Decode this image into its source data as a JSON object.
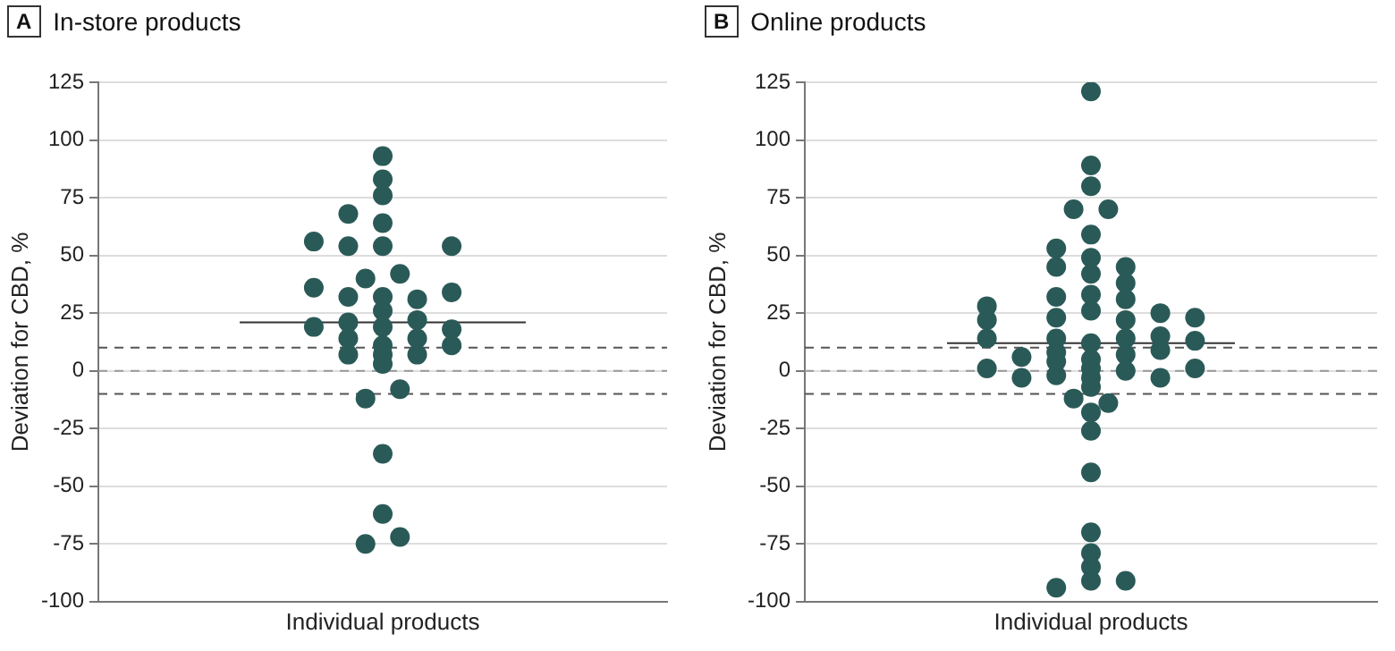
{
  "chart_data": [
    {
      "type": "scatter",
      "title": "In-store products",
      "annotations": [
        "A"
      ],
      "xlabel": "Individual products",
      "ylabel": "Deviation for CBD, %",
      "categories": [
        null,
        null,
        null,
        null,
        null,
        null,
        null,
        null,
        null,
        null,
        null,
        null,
        null,
        null,
        null,
        null,
        null,
        null,
        null,
        null,
        null,
        null,
        null,
        null,
        null,
        null,
        null,
        null,
        null,
        null,
        null,
        null,
        null
      ],
      "series": [
        {
          "color": "#2a5a57",
          "values": [
            null,
            null,
            null,
            null,
            null,
            null,
            null,
            null,
            null,
            null,
            null,
            null,
            56,
            null,
            68,
            40,
            93,
            42,
            31,
            null,
            54,
            null,
            null,
            null,
            null,
            null,
            null,
            null,
            null,
            null,
            null,
            null,
            null
          ]
        },
        {
          "color": "#2a5a57",
          "values": [
            null,
            null,
            null,
            null,
            null,
            null,
            null,
            null,
            null,
            null,
            null,
            null,
            36,
            null,
            54,
            -12,
            83,
            -8,
            22,
            null,
            34,
            null,
            null,
            null,
            null,
            null,
            null,
            null,
            null,
            null,
            null,
            null,
            null
          ]
        },
        {
          "color": "#2a5a57",
          "values": [
            null,
            null,
            null,
            null,
            null,
            null,
            null,
            null,
            null,
            null,
            null,
            null,
            19,
            null,
            32,
            -75,
            76,
            -72,
            14,
            null,
            18,
            null,
            null,
            null,
            null,
            null,
            null,
            null,
            null,
            null,
            null,
            null,
            null
          ]
        },
        {
          "color": "#2a5a57",
          "values": [
            null,
            null,
            null,
            null,
            null,
            null,
            null,
            null,
            null,
            null,
            null,
            null,
            null,
            null,
            21,
            null,
            64,
            null,
            7,
            null,
            11,
            null,
            null,
            null,
            null,
            null,
            null,
            null,
            null,
            null,
            null,
            null,
            null
          ]
        },
        {
          "color": "#2a5a57",
          "values": [
            null,
            null,
            null,
            null,
            null,
            null,
            null,
            null,
            null,
            null,
            null,
            null,
            null,
            null,
            14,
            null,
            54,
            null,
            null,
            null,
            null,
            null,
            null,
            null,
            null,
            null,
            null,
            null,
            null,
            null,
            null,
            null,
            null
          ]
        },
        {
          "color": "#2a5a57",
          "values": [
            null,
            null,
            null,
            null,
            null,
            null,
            null,
            null,
            null,
            null,
            null,
            null,
            null,
            null,
            7,
            null,
            32,
            null,
            null,
            null,
            null,
            null,
            null,
            null,
            null,
            null,
            null,
            null,
            null,
            null,
            null,
            null,
            null
          ]
        },
        {
          "color": "#2a5a57",
          "values": [
            null,
            null,
            null,
            null,
            null,
            null,
            null,
            null,
            null,
            null,
            null,
            null,
            null,
            null,
            null,
            null,
            26,
            null,
            null,
            null,
            null,
            null,
            null,
            null,
            null,
            null,
            null,
            null,
            null,
            null,
            null,
            null,
            null
          ]
        },
        {
          "color": "#2a5a57",
          "values": [
            null,
            null,
            null,
            null,
            null,
            null,
            null,
            null,
            null,
            null,
            null,
            null,
            null,
            null,
            null,
            null,
            19,
            null,
            null,
            null,
            null,
            null,
            null,
            null,
            null,
            null,
            null,
            null,
            null,
            null,
            null,
            null,
            null
          ]
        },
        {
          "color": "#2a5a57",
          "values": [
            null,
            null,
            null,
            null,
            null,
            null,
            null,
            null,
            null,
            null,
            null,
            null,
            null,
            null,
            null,
            null,
            11,
            null,
            null,
            null,
            null,
            null,
            null,
            null,
            null,
            null,
            null,
            null,
            null,
            null,
            null,
            null,
            null
          ]
        },
        {
          "color": "#2a5a57",
          "values": [
            null,
            null,
            null,
            null,
            null,
            null,
            null,
            null,
            null,
            null,
            null,
            null,
            null,
            null,
            null,
            null,
            7,
            null,
            null,
            null,
            null,
            null,
            null,
            null,
            null,
            null,
            null,
            null,
            null,
            null,
            null,
            null,
            null
          ]
        },
        {
          "color": "#2a5a57",
          "values": [
            null,
            null,
            null,
            null,
            null,
            null,
            null,
            null,
            null,
            null,
            null,
            null,
            null,
            null,
            null,
            null,
            3,
            null,
            null,
            null,
            null,
            null,
            null,
            null,
            null,
            null,
            null,
            null,
            null,
            null,
            null,
            null,
            null
          ]
        },
        {
          "color": "#2a5a57",
          "values": [
            null,
            null,
            null,
            null,
            null,
            null,
            null,
            null,
            null,
            null,
            null,
            null,
            null,
            null,
            null,
            null,
            -36,
            null,
            null,
            null,
            null,
            null,
            null,
            null,
            null,
            null,
            null,
            null,
            null,
            null,
            null,
            null,
            null
          ]
        },
        {
          "color": "#2a5a57",
          "values": [
            null,
            null,
            null,
            null,
            null,
            null,
            null,
            null,
            null,
            null,
            null,
            null,
            null,
            null,
            null,
            null,
            -62,
            null,
            null,
            null,
            null,
            null,
            null,
            null,
            null,
            null,
            null,
            null,
            null,
            null,
            null,
            null,
            null
          ]
        }
      ],
      "ylim": [
        -100,
        125
      ],
      "yticks": [
        -100,
        -75,
        -50,
        -25,
        0,
        25,
        50,
        75,
        100,
        125
      ],
      "grid": "y",
      "marker": "circle",
      "ref_lines": [
        {
          "axis": "y",
          "value": 21,
          "color": "#333333",
          "line_style": "solid"
        },
        {
          "axis": "y",
          "value": 10,
          "color": "#555555",
          "line_style": "dashed"
        },
        {
          "axis": "y",
          "value": 0,
          "color": "#999999",
          "line_style": "dashed"
        },
        {
          "axis": "y",
          "value": -10,
          "color": "#555555",
          "line_style": "dashed"
        }
      ]
    },
    {
      "type": "scatter",
      "title": "Online products",
      "annotations": [
        "B"
      ],
      "xlabel": "Individual products",
      "ylabel": "Deviation for CBD, %",
      "categories": [
        null,
        null,
        null,
        null,
        null,
        null,
        null,
        null,
        null,
        null,
        null,
        null,
        null,
        null,
        null,
        null,
        null,
        null,
        null,
        null,
        null,
        null,
        null,
        null,
        null,
        null,
        null,
        null,
        null,
        null,
        null,
        null,
        null
      ],
      "series": [
        {
          "color": "#2a5a57",
          "values": [
            null,
            null,
            null,
            null,
            null,
            null,
            null,
            null,
            null,
            null,
            28,
            null,
            6,
            null,
            53,
            70,
            121,
            70,
            45,
            null,
            25,
            null,
            23,
            null,
            null,
            null,
            null,
            null,
            null,
            null,
            null,
            null,
            null
          ]
        },
        {
          "color": "#2a5a57",
          "values": [
            null,
            null,
            null,
            null,
            null,
            null,
            null,
            null,
            null,
            null,
            22,
            null,
            -3,
            null,
            45,
            -12,
            89,
            -14,
            38,
            null,
            15,
            null,
            13,
            null,
            null,
            null,
            null,
            null,
            null,
            null,
            null,
            null,
            null
          ]
        },
        {
          "color": "#2a5a57",
          "values": [
            null,
            null,
            null,
            null,
            null,
            null,
            null,
            null,
            null,
            null,
            14,
            null,
            null,
            null,
            32,
            null,
            80,
            null,
            31,
            null,
            9,
            null,
            1,
            null,
            null,
            null,
            null,
            null,
            null,
            null,
            null,
            null,
            null
          ]
        },
        {
          "color": "#2a5a57",
          "values": [
            null,
            null,
            null,
            null,
            null,
            null,
            null,
            null,
            null,
            null,
            1,
            null,
            null,
            null,
            23,
            null,
            59,
            null,
            22,
            null,
            -3,
            null,
            null,
            null,
            null,
            null,
            null,
            null,
            null,
            null,
            null,
            null,
            null
          ]
        },
        {
          "color": "#2a5a57",
          "values": [
            null,
            null,
            null,
            null,
            null,
            null,
            null,
            null,
            null,
            null,
            null,
            null,
            null,
            null,
            14,
            null,
            49,
            null,
            14,
            null,
            null,
            null,
            null,
            null,
            null,
            null,
            null,
            null,
            null,
            null,
            null,
            null,
            null
          ]
        },
        {
          "color": "#2a5a57",
          "values": [
            null,
            null,
            null,
            null,
            null,
            null,
            null,
            null,
            null,
            null,
            null,
            null,
            null,
            null,
            8,
            null,
            42,
            null,
            7,
            null,
            null,
            null,
            null,
            null,
            null,
            null,
            null,
            null,
            null,
            null,
            null,
            null,
            null
          ]
        },
        {
          "color": "#2a5a57",
          "values": [
            null,
            null,
            null,
            null,
            null,
            null,
            null,
            null,
            null,
            null,
            null,
            null,
            null,
            null,
            4,
            null,
            33,
            null,
            0,
            null,
            null,
            null,
            null,
            null,
            null,
            null,
            null,
            null,
            null,
            null,
            null,
            null,
            null
          ]
        },
        {
          "color": "#2a5a57",
          "values": [
            null,
            null,
            null,
            null,
            null,
            null,
            null,
            null,
            null,
            null,
            null,
            null,
            null,
            null,
            -2,
            null,
            26,
            null,
            -91,
            null,
            null,
            null,
            null,
            null,
            null,
            null,
            null,
            null,
            null,
            null,
            null,
            null,
            null
          ]
        },
        {
          "color": "#2a5a57",
          "values": [
            null,
            null,
            null,
            null,
            null,
            null,
            null,
            null,
            null,
            null,
            null,
            null,
            null,
            null,
            -94,
            null,
            12,
            null,
            null,
            null,
            null,
            null,
            null,
            null,
            null,
            null,
            null,
            null,
            null,
            null,
            null,
            null,
            null
          ]
        },
        {
          "color": "#2a5a57",
          "values": [
            null,
            null,
            null,
            null,
            null,
            null,
            null,
            null,
            null,
            null,
            null,
            null,
            null,
            null,
            null,
            null,
            5,
            null,
            null,
            null,
            null,
            null,
            null,
            null,
            null,
            null,
            null,
            null,
            null,
            null,
            null,
            null,
            null
          ]
        },
        {
          "color": "#2a5a57",
          "values": [
            null,
            null,
            null,
            null,
            null,
            null,
            null,
            null,
            null,
            null,
            null,
            null,
            null,
            null,
            null,
            null,
            1,
            null,
            null,
            null,
            null,
            null,
            null,
            null,
            null,
            null,
            null,
            null,
            null,
            null,
            null,
            null,
            null
          ]
        },
        {
          "color": "#2a5a57",
          "values": [
            null,
            null,
            null,
            null,
            null,
            null,
            null,
            null,
            null,
            null,
            null,
            null,
            null,
            null,
            null,
            null,
            -3,
            null,
            null,
            null,
            null,
            null,
            null,
            null,
            null,
            null,
            null,
            null,
            null,
            null,
            null,
            null,
            null
          ]
        },
        {
          "color": "#2a5a57",
          "values": [
            null,
            null,
            null,
            null,
            null,
            null,
            null,
            null,
            null,
            null,
            null,
            null,
            null,
            null,
            null,
            null,
            -7,
            null,
            null,
            null,
            null,
            null,
            null,
            null,
            null,
            null,
            null,
            null,
            null,
            null,
            null,
            null,
            null
          ]
        },
        {
          "color": "#2a5a57",
          "values": [
            null,
            null,
            null,
            null,
            null,
            null,
            null,
            null,
            null,
            null,
            null,
            null,
            null,
            null,
            null,
            null,
            -18,
            null,
            null,
            null,
            null,
            null,
            null,
            null,
            null,
            null,
            null,
            null,
            null,
            null,
            null,
            null,
            null
          ]
        },
        {
          "color": "#2a5a57",
          "values": [
            null,
            null,
            null,
            null,
            null,
            null,
            null,
            null,
            null,
            null,
            null,
            null,
            null,
            null,
            null,
            null,
            -26,
            null,
            null,
            null,
            null,
            null,
            null,
            null,
            null,
            null,
            null,
            null,
            null,
            null,
            null,
            null,
            null
          ]
        },
        {
          "color": "#2a5a57",
          "values": [
            null,
            null,
            null,
            null,
            null,
            null,
            null,
            null,
            null,
            null,
            null,
            null,
            null,
            null,
            null,
            null,
            -44,
            null,
            null,
            null,
            null,
            null,
            null,
            null,
            null,
            null,
            null,
            null,
            null,
            null,
            null,
            null,
            null
          ]
        },
        {
          "color": "#2a5a57",
          "values": [
            null,
            null,
            null,
            null,
            null,
            null,
            null,
            null,
            null,
            null,
            null,
            null,
            null,
            null,
            null,
            null,
            -70,
            null,
            null,
            null,
            null,
            null,
            null,
            null,
            null,
            null,
            null,
            null,
            null,
            null,
            null,
            null,
            null
          ]
        },
        {
          "color": "#2a5a57",
          "values": [
            null,
            null,
            null,
            null,
            null,
            null,
            null,
            null,
            null,
            null,
            null,
            null,
            null,
            null,
            null,
            null,
            -79,
            null,
            null,
            null,
            null,
            null,
            null,
            null,
            null,
            null,
            null,
            null,
            null,
            null,
            null,
            null,
            null
          ]
        },
        {
          "color": "#2a5a57",
          "values": [
            null,
            null,
            null,
            null,
            null,
            null,
            null,
            null,
            null,
            null,
            null,
            null,
            null,
            null,
            null,
            null,
            -85,
            null,
            null,
            null,
            null,
            null,
            null,
            null,
            null,
            null,
            null,
            null,
            null,
            null,
            null,
            null,
            null
          ]
        },
        {
          "color": "#2a5a57",
          "values": [
            null,
            null,
            null,
            null,
            null,
            null,
            null,
            null,
            null,
            null,
            null,
            null,
            null,
            null,
            null,
            null,
            -91,
            null,
            null,
            null,
            null,
            null,
            null,
            null,
            null,
            null,
            null,
            null,
            null,
            null,
            null,
            null,
            null
          ]
        }
      ],
      "ylim": [
        -100,
        125
      ],
      "yticks": [
        -100,
        -75,
        -50,
        -25,
        0,
        25,
        50,
        75,
        100,
        125
      ],
      "grid": "y",
      "marker": "circle",
      "ref_lines": [
        {
          "axis": "y",
          "value": 12,
          "color": "#333333",
          "line_style": "solid"
        },
        {
          "axis": "y",
          "value": 10,
          "color": "#555555",
          "line_style": "dashed"
        },
        {
          "axis": "y",
          "value": 0,
          "color": "#999999",
          "line_style": "dashed"
        },
        {
          "axis": "y",
          "value": -10,
          "color": "#555555",
          "line_style": "dashed"
        }
      ]
    }
  ]
}
